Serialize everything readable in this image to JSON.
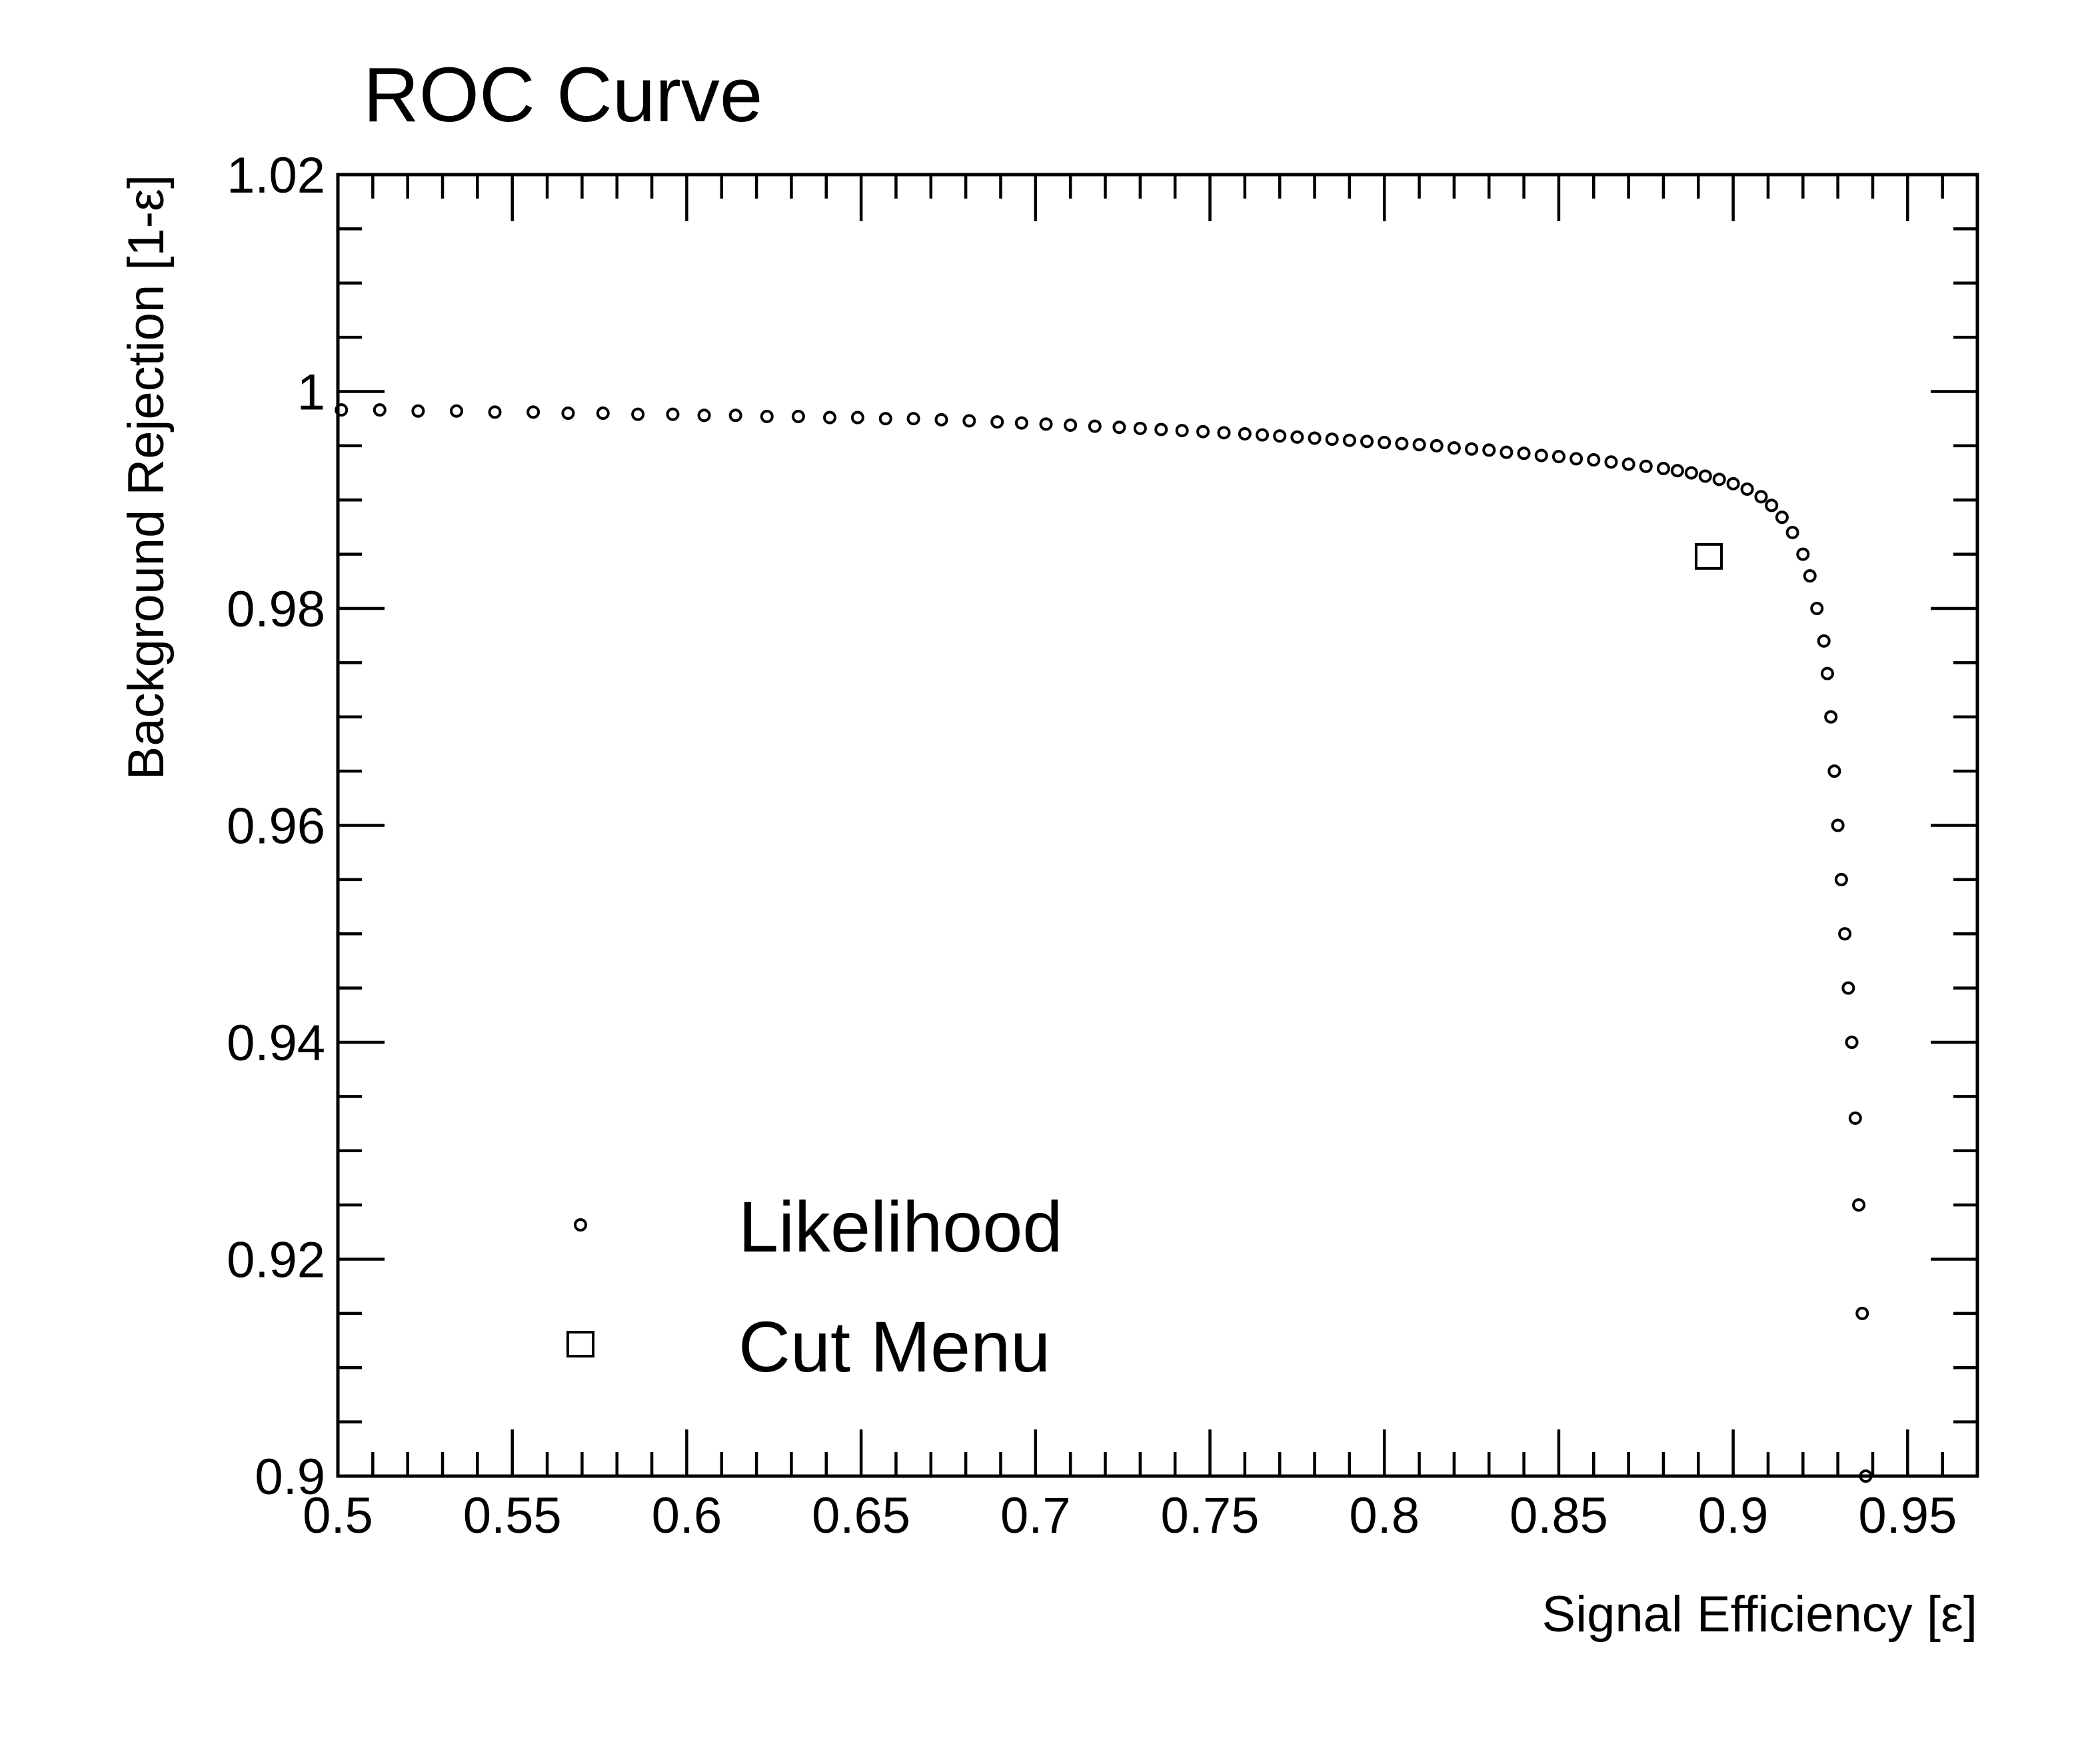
{
  "chart_data": {
    "type": "scatter",
    "title": "ROC Curve",
    "xlabel": "Signal Efficiency [ε]",
    "ylabel": "Background Rejection [1-ε]",
    "xlim": [
      0.5,
      0.97
    ],
    "ylim": [
      0.9,
      1.02
    ],
    "xticks": [
      "0.5",
      "0.55",
      "0.6",
      "0.65",
      "0.7",
      "0.75",
      "0.8",
      "0.85",
      "0.9",
      "0.95"
    ],
    "xtick_values": [
      0.5,
      0.55,
      0.6,
      0.65,
      0.7,
      0.75,
      0.8,
      0.85,
      0.9,
      0.95
    ],
    "yticks": [
      "0.9",
      "0.92",
      "0.94",
      "0.96",
      "0.98",
      "1",
      "1.02"
    ],
    "ytick_values": [
      0.9,
      0.92,
      0.94,
      0.96,
      0.98,
      1.0,
      1.02
    ],
    "grid": false,
    "legend_position": "bottom-left",
    "series": [
      {
        "name": "Likelihood",
        "marker": "open-circle",
        "x": [
          0.501,
          0.512,
          0.523,
          0.534,
          0.545,
          0.556,
          0.566,
          0.576,
          0.586,
          0.596,
          0.605,
          0.614,
          0.623,
          0.632,
          0.641,
          0.649,
          0.657,
          0.665,
          0.673,
          0.681,
          0.689,
          0.696,
          0.703,
          0.71,
          0.717,
          0.724,
          0.73,
          0.736,
          0.742,
          0.748,
          0.754,
          0.76,
          0.765,
          0.77,
          0.775,
          0.78,
          0.785,
          0.79,
          0.795,
          0.8,
          0.805,
          0.81,
          0.815,
          0.82,
          0.825,
          0.83,
          0.835,
          0.84,
          0.845,
          0.85,
          0.855,
          0.86,
          0.865,
          0.87,
          0.875,
          0.88,
          0.884,
          0.888,
          0.892,
          0.896,
          0.9,
          0.904,
          0.908,
          0.911,
          0.914,
          0.917,
          0.92,
          0.922,
          0.924,
          0.926,
          0.927,
          0.928,
          0.929,
          0.93,
          0.931,
          0.932,
          0.933,
          0.934,
          0.935,
          0.936,
          0.937,
          0.938
        ],
        "y": [
          0.9983,
          0.9983,
          0.9982,
          0.9982,
          0.9981,
          0.9981,
          0.998,
          0.998,
          0.9979,
          0.9979,
          0.9978,
          0.9978,
          0.9977,
          0.9977,
          0.9976,
          0.9976,
          0.9975,
          0.9975,
          0.9974,
          0.9973,
          0.9972,
          0.9971,
          0.997,
          0.9969,
          0.9968,
          0.9967,
          0.9966,
          0.9965,
          0.9964,
          0.9963,
          0.9962,
          0.9961,
          0.996,
          0.9959,
          0.9958,
          0.9957,
          0.9956,
          0.9955,
          0.9954,
          0.9953,
          0.9952,
          0.9951,
          0.995,
          0.9948,
          0.9947,
          0.9946,
          0.9944,
          0.9943,
          0.9941,
          0.994,
          0.9938,
          0.9937,
          0.9935,
          0.9933,
          0.9931,
          0.9929,
          0.9927,
          0.9925,
          0.9922,
          0.9919,
          0.9915,
          0.991,
          0.9903,
          0.9895,
          0.9884,
          0.987,
          0.985,
          0.983,
          0.98,
          0.977,
          0.974,
          0.97,
          0.965,
          0.96,
          0.955,
          0.95,
          0.945,
          0.94,
          0.933,
          0.925,
          0.915,
          0.9
        ]
      },
      {
        "name": "Cut Menu",
        "marker": "open-square",
        "x": [
          0.893
        ],
        "y": [
          0.9848
        ]
      }
    ]
  }
}
